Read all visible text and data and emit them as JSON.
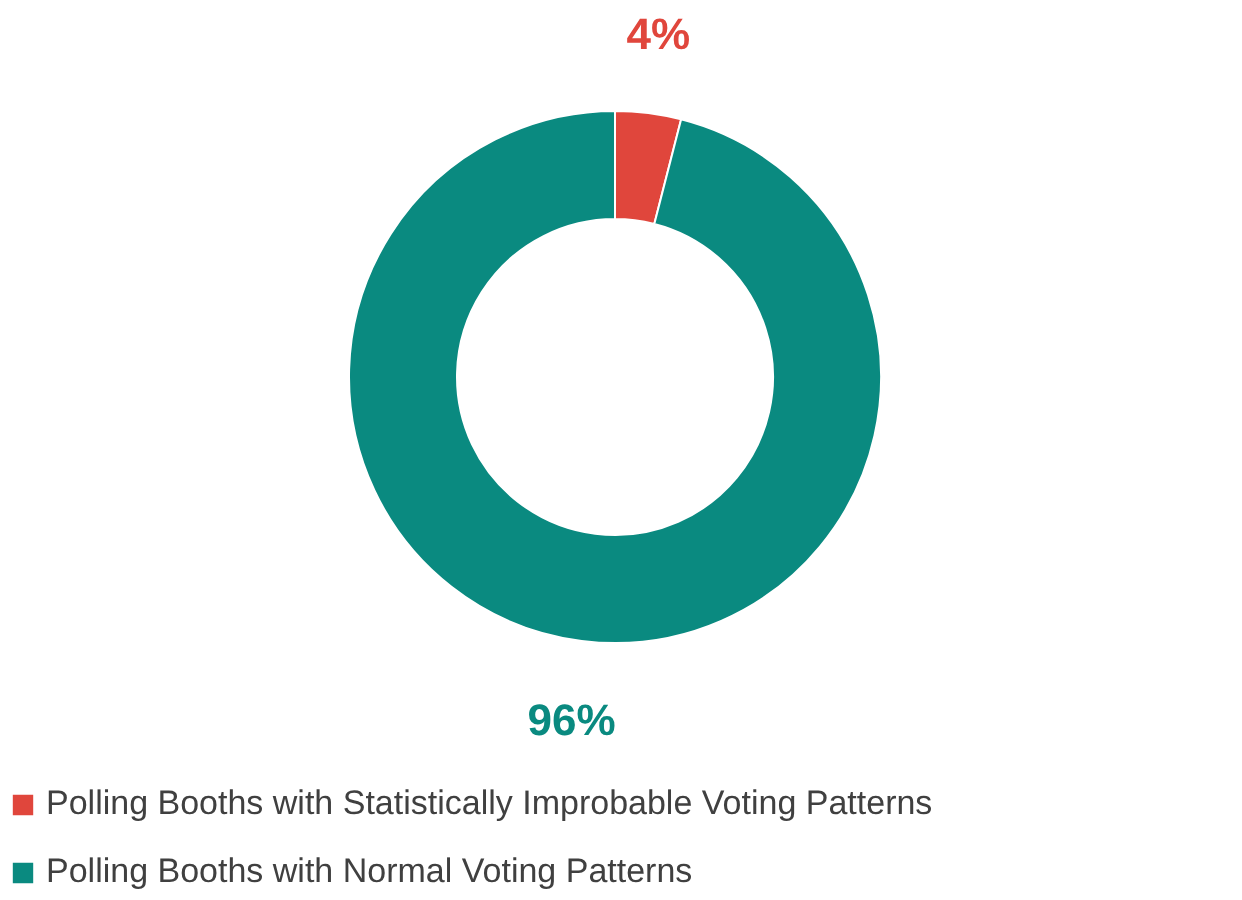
{
  "chart_data": {
    "type": "donut",
    "categories": [
      "Polling Booths with Statistically Improbable Voting Patterns",
      "Polling Booths with Normal Voting Patterns"
    ],
    "values": [
      4,
      96
    ],
    "colors": [
      "#e0463c",
      "#0a8a80"
    ],
    "value_labels": [
      "4%",
      "96%"
    ],
    "legend": "bottom"
  }
}
